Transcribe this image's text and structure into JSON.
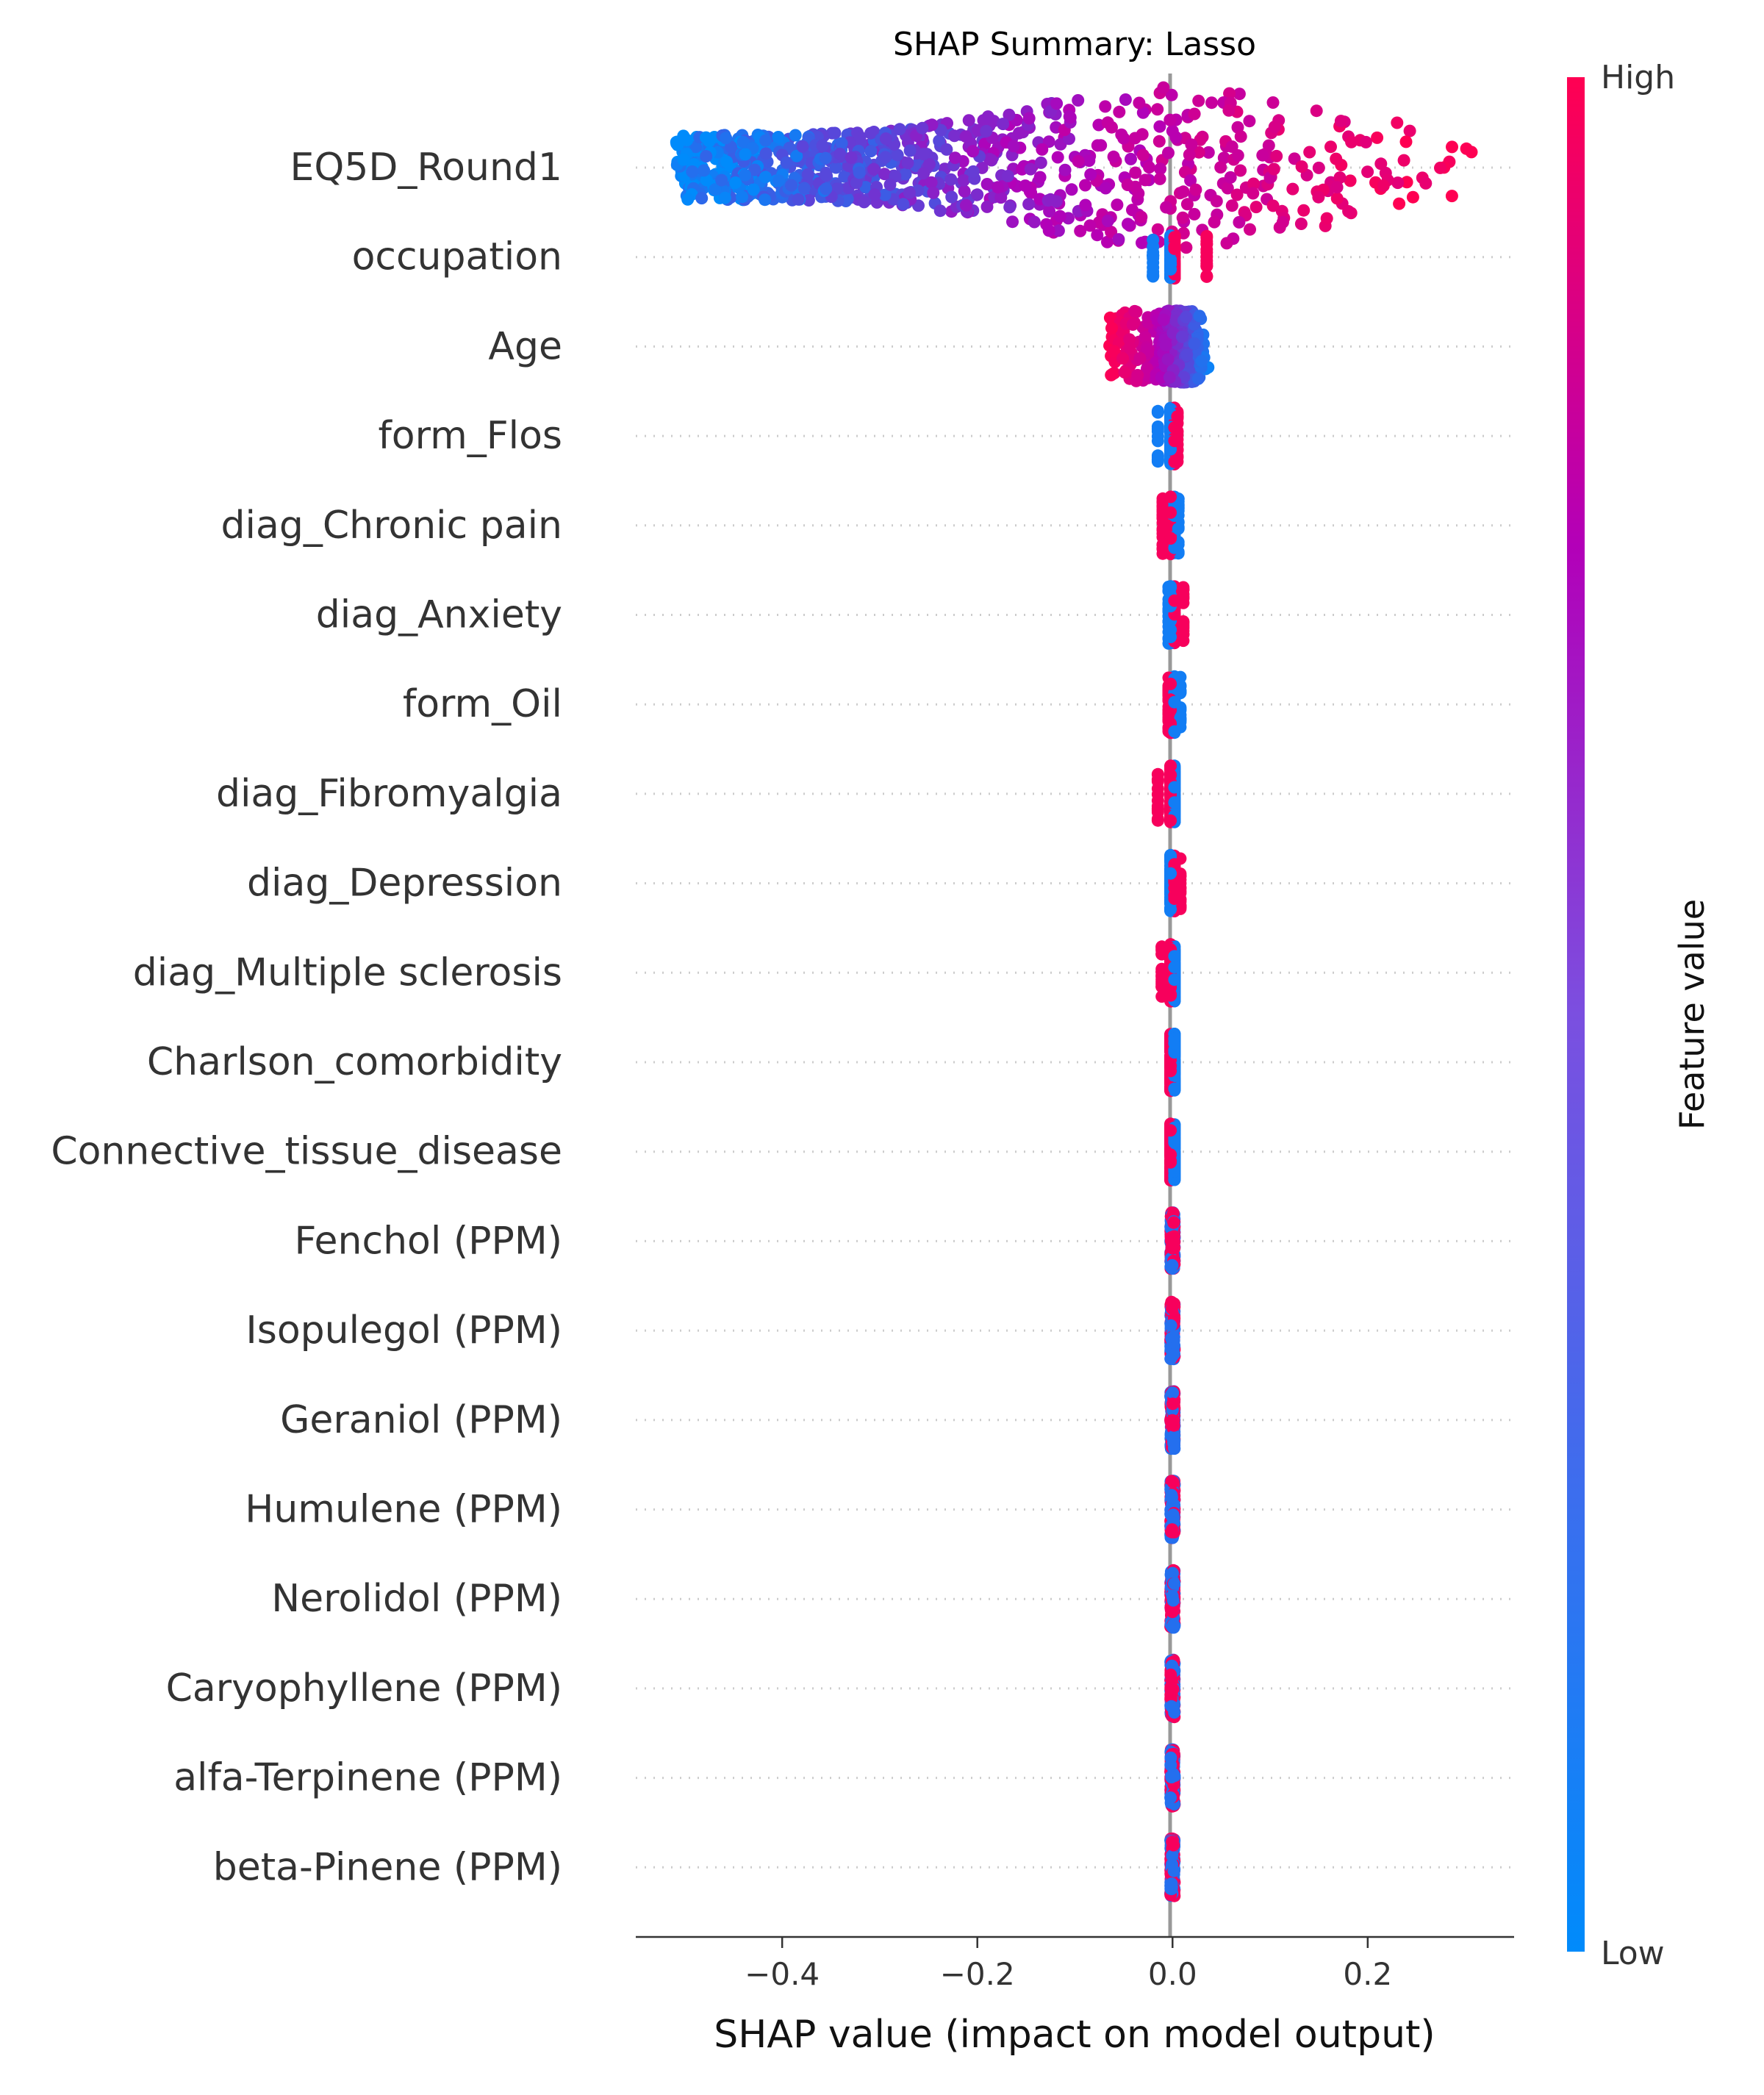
{
  "chart_data": {
    "type": "scatter",
    "subtype": "shap-beeswarm",
    "title": "SHAP Summary: Lasso",
    "xlabel": "SHAP value (impact on model output)",
    "ylabel": "",
    "xlim": [
      -0.55,
      0.35
    ],
    "xticks": [
      -0.4,
      -0.2,
      0.0,
      0.2
    ],
    "xtick_labels": [
      "−0.4",
      "−0.2",
      "0.0",
      "0.2"
    ],
    "grid": false,
    "features": [
      {
        "name": "EQ5D_Round1",
        "shap_min": -0.51,
        "shap_max": 0.31,
        "low_side": "negative",
        "max_spread": 0.045
      },
      {
        "name": "occupation",
        "shap_min": -0.02,
        "shap_max": 0.035,
        "low_side": "negative",
        "max_spread": 0.012
      },
      {
        "name": "Age",
        "shap_min": -0.065,
        "shap_max": 0.04,
        "low_side": "positive",
        "max_spread": 0.02
      },
      {
        "name": "form_Flos",
        "shap_min": -0.015,
        "shap_max": 0.005,
        "low_side": "negative",
        "max_spread": 0.016
      },
      {
        "name": "diag_Chronic pain",
        "shap_min": -0.01,
        "shap_max": 0.006,
        "low_side": "positive",
        "max_spread": 0.016
      },
      {
        "name": "diag_Anxiety",
        "shap_min": -0.004,
        "shap_max": 0.011,
        "low_side": "negative",
        "max_spread": 0.016
      },
      {
        "name": "form_Oil",
        "shap_min": -0.004,
        "shap_max": 0.008,
        "low_side": "positive",
        "max_spread": 0.016
      },
      {
        "name": "diag_Fibromyalgia",
        "shap_min": -0.015,
        "shap_max": 0.002,
        "low_side": "positive",
        "max_spread": 0.016
      },
      {
        "name": "diag_Depression",
        "shap_min": -0.001,
        "shap_max": 0.008,
        "low_side": "negative",
        "max_spread": 0.016
      },
      {
        "name": "diag_Multiple sclerosis",
        "shap_min": -0.011,
        "shap_max": 0.002,
        "low_side": "positive",
        "max_spread": 0.016
      },
      {
        "name": "Charlson_comorbidity",
        "shap_min": -0.002,
        "shap_max": 0.002,
        "low_side": "positive",
        "max_spread": 0.016
      },
      {
        "name": "Connective_tissue_disease",
        "shap_min": -0.002,
        "shap_max": 0.002,
        "low_side": "positive",
        "max_spread": 0.016
      },
      {
        "name": "Fenchol (PPM)",
        "shap_min": -0.002,
        "shap_max": 0.002,
        "low_side": "mixed",
        "max_spread": 0.016
      },
      {
        "name": "Isopulegol (PPM)",
        "shap_min": -0.002,
        "shap_max": 0.002,
        "low_side": "mixed",
        "max_spread": 0.016
      },
      {
        "name": "Geraniol (PPM)",
        "shap_min": -0.002,
        "shap_max": 0.002,
        "low_side": "mixed",
        "max_spread": 0.016
      },
      {
        "name": "Humulene (PPM)",
        "shap_min": -0.002,
        "shap_max": 0.002,
        "low_side": "mixed",
        "max_spread": 0.016
      },
      {
        "name": "Nerolidol (PPM)",
        "shap_min": -0.002,
        "shap_max": 0.002,
        "low_side": "mixed",
        "max_spread": 0.016
      },
      {
        "name": "Caryophyllene (PPM)",
        "shap_min": -0.002,
        "shap_max": 0.002,
        "low_side": "mixed",
        "max_spread": 0.016
      },
      {
        "name": "alfa-Terpinene (PPM)",
        "shap_min": -0.002,
        "shap_max": 0.002,
        "low_side": "mixed",
        "max_spread": 0.016
      },
      {
        "name": "beta-Pinene (PPM)",
        "shap_min": -0.002,
        "shap_max": 0.002,
        "low_side": "mixed",
        "max_spread": 0.016
      }
    ],
    "colorbar": {
      "label": "Feature value",
      "high_label": "High",
      "low_label": "Low",
      "high_color": "#ff0052",
      "mid_color": "#b300b8",
      "low_color": "#008bfb"
    }
  }
}
